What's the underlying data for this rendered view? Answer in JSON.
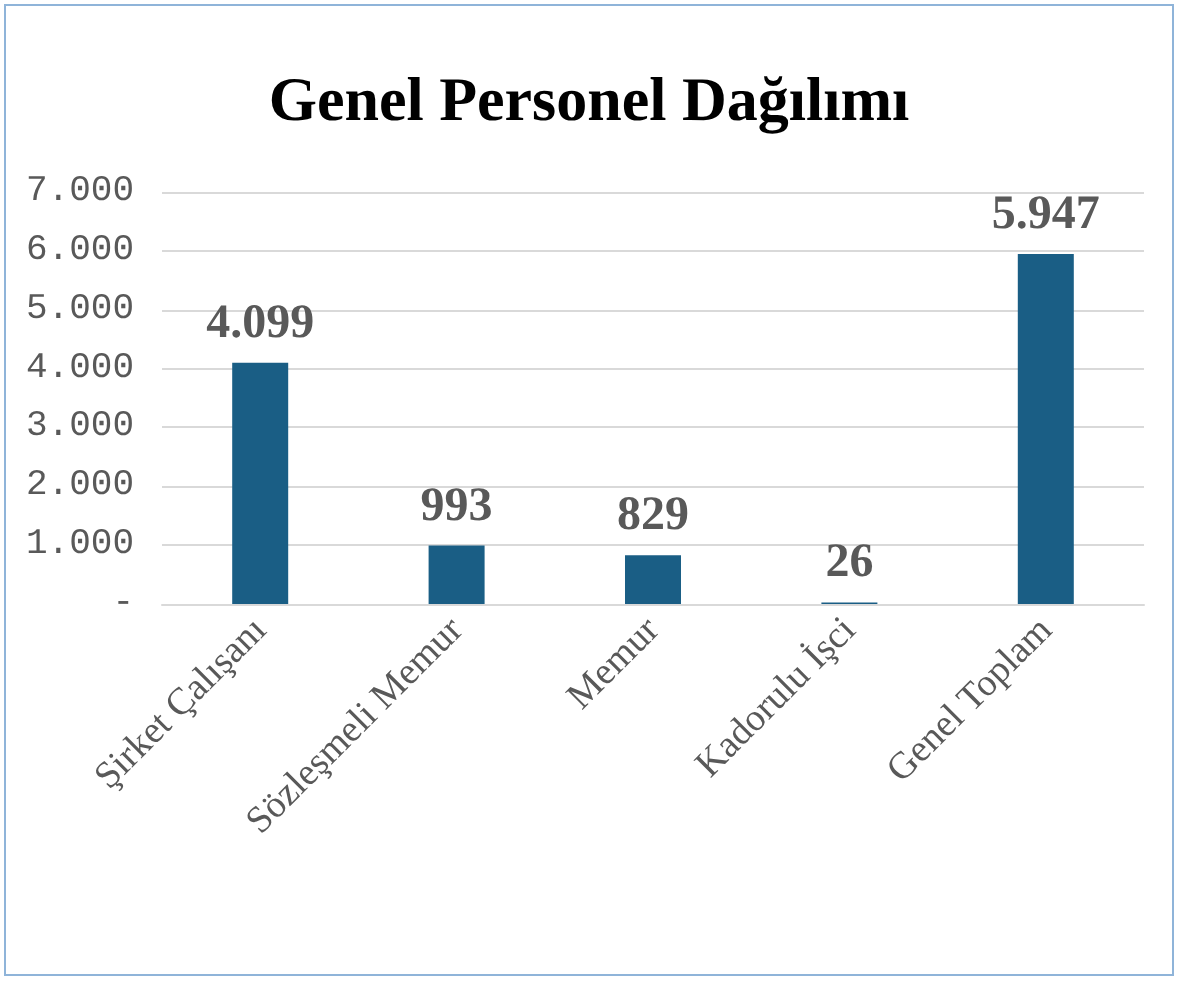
{
  "chart_data": {
    "type": "bar",
    "title": "Genel Personel Dağılımı",
    "categories": [
      "Şirket Çalışanı",
      "Sözleşmeli Memur",
      "Memur",
      "Kadorulu İşci",
      "Genel Toplam"
    ],
    "values": [
      4099,
      993,
      829,
      26,
      5947
    ],
    "value_labels": [
      "4.099",
      "993",
      "829",
      "26",
      "5.947"
    ],
    "color": "#1a5e85",
    "ylim": [
      0,
      7000
    ],
    "yticks": [
      {
        "value": 0,
        "label": "-"
      },
      {
        "value": 1000,
        "label": "1.000"
      },
      {
        "value": 2000,
        "label": "2.000"
      },
      {
        "value": 3000,
        "label": "3.000"
      },
      {
        "value": 4000,
        "label": "4.000"
      },
      {
        "value": 5000,
        "label": "5.000"
      },
      {
        "value": 6000,
        "label": "6.000"
      },
      {
        "value": 7000,
        "label": "7.000"
      }
    ],
    "grid": "y"
  }
}
